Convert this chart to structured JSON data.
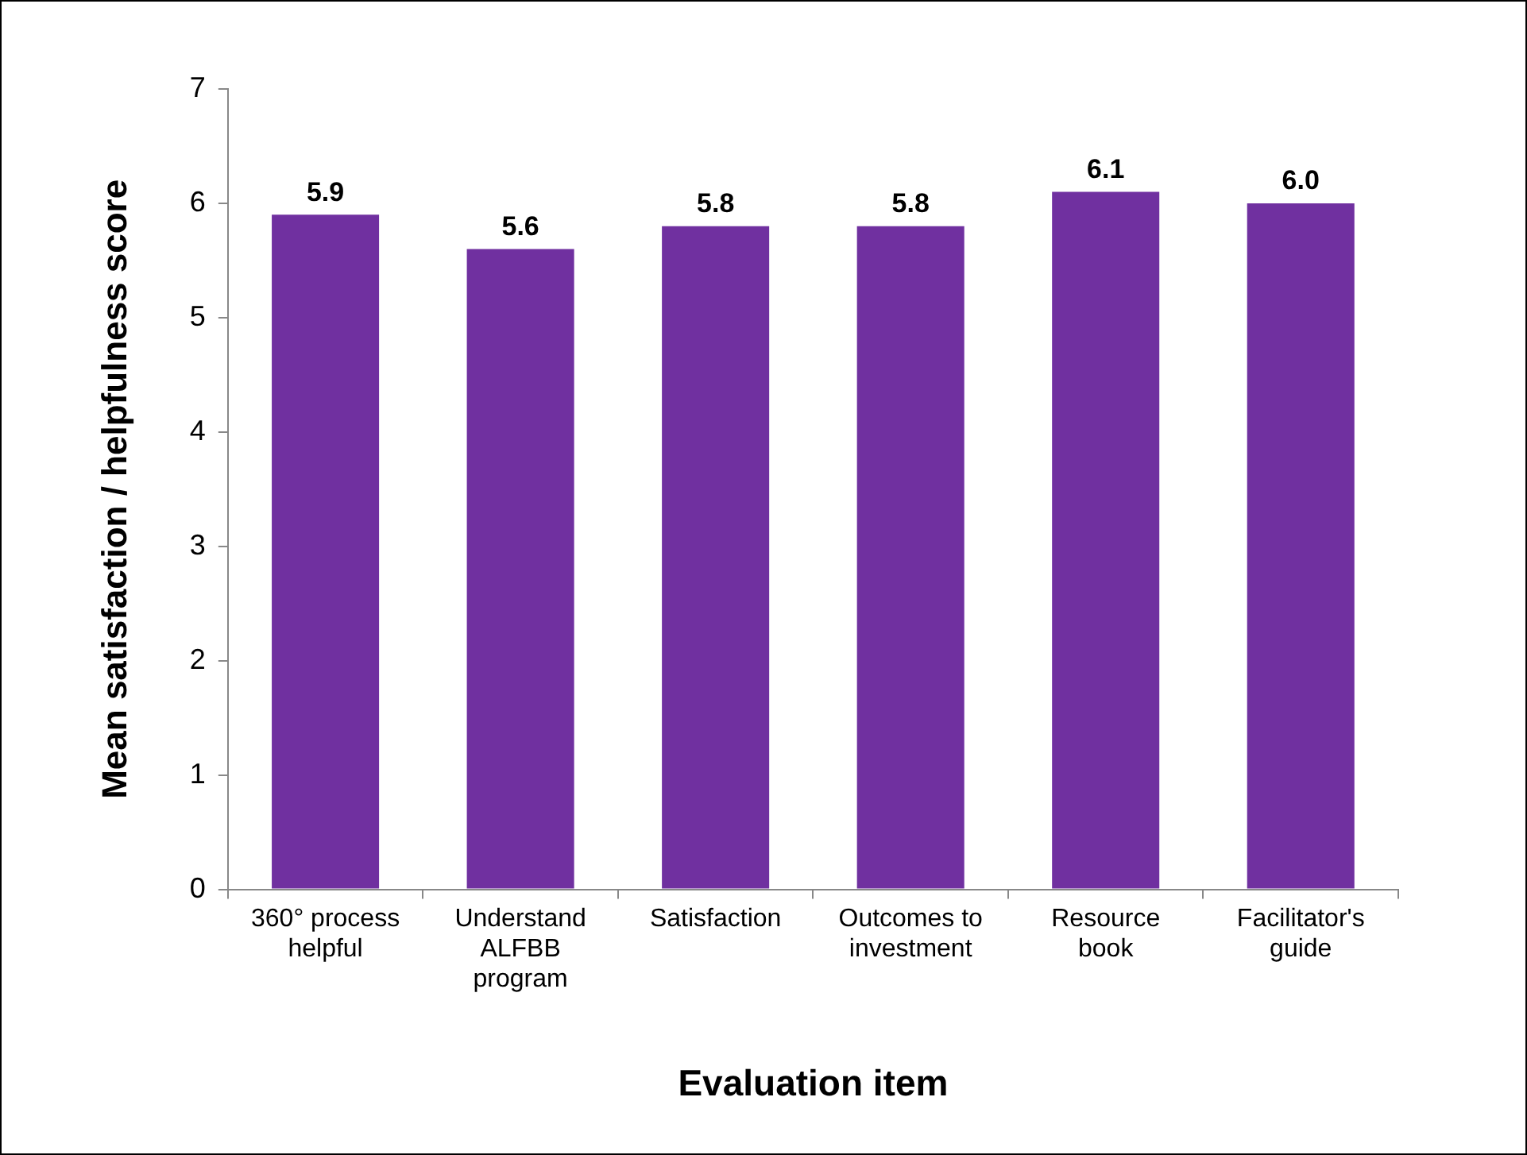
{
  "chart_data": {
    "type": "bar",
    "xlabel": "Evaluation item",
    "ylabel": "Mean satisfaction / helpfulness score",
    "categories": [
      "360° process helpful",
      "Understand ALFBB program",
      "Satisfaction",
      "Outcomes to investment",
      "Resource book",
      "Facilitator's guide"
    ],
    "values": [
      5.9,
      5.6,
      5.8,
      5.8,
      6.1,
      6.0
    ],
    "value_labels": [
      "5.9",
      "5.6",
      "5.8",
      "5.8",
      "6.1",
      "6.0"
    ],
    "color": "#7030a0",
    "ylim": [
      0,
      7
    ],
    "yticks": [
      0,
      1,
      2,
      3,
      4,
      5,
      6,
      7
    ],
    "grid": false,
    "legend": false
  }
}
